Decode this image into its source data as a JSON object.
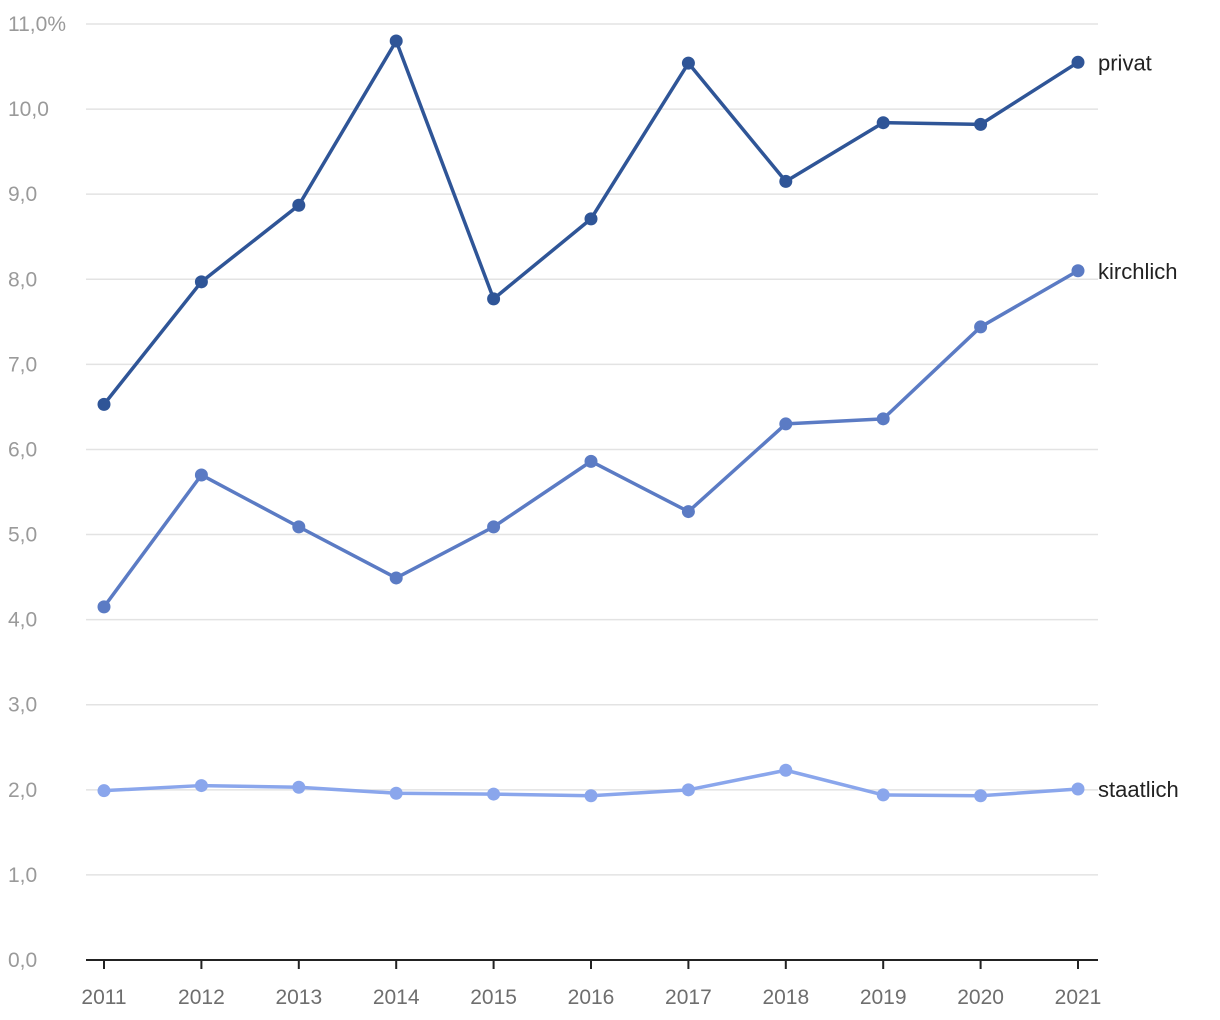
{
  "chart_data": {
    "type": "line",
    "title": "",
    "xlabel": "",
    "ylabel": "",
    "x": [
      "2011",
      "2012",
      "2013",
      "2014",
      "2015",
      "2016",
      "2017",
      "2018",
      "2019",
      "2020",
      "2021"
    ],
    "ylim": [
      0,
      11
    ],
    "y_ticks": [
      0,
      1,
      2,
      3,
      4,
      5,
      6,
      7,
      8,
      9,
      10,
      11
    ],
    "y_tick_labels": [
      "0,0",
      "1,0",
      "2,0",
      "3,0",
      "4,0",
      "5,0",
      "6,0",
      "7,0",
      "8,0",
      "9,0",
      "10,0",
      "11,0%"
    ],
    "grid": true,
    "legend": "direct labels at right end of each line",
    "series": [
      {
        "name": "privat",
        "color": "#2f5597",
        "values": [
          6.53,
          7.97,
          8.87,
          10.8,
          7.77,
          8.71,
          10.54,
          9.15,
          9.84,
          9.82,
          10.55
        ]
      },
      {
        "name": "kirchlich",
        "color": "#5b7bc4",
        "values": [
          4.15,
          5.7,
          5.09,
          4.49,
          5.09,
          5.86,
          5.27,
          6.3,
          6.36,
          7.44,
          8.1
        ]
      },
      {
        "name": "staatlich",
        "color": "#8aa6ec",
        "values": [
          1.99,
          2.05,
          2.03,
          1.96,
          1.95,
          1.93,
          2.0,
          2.23,
          1.94,
          1.93,
          2.01
        ]
      }
    ]
  }
}
